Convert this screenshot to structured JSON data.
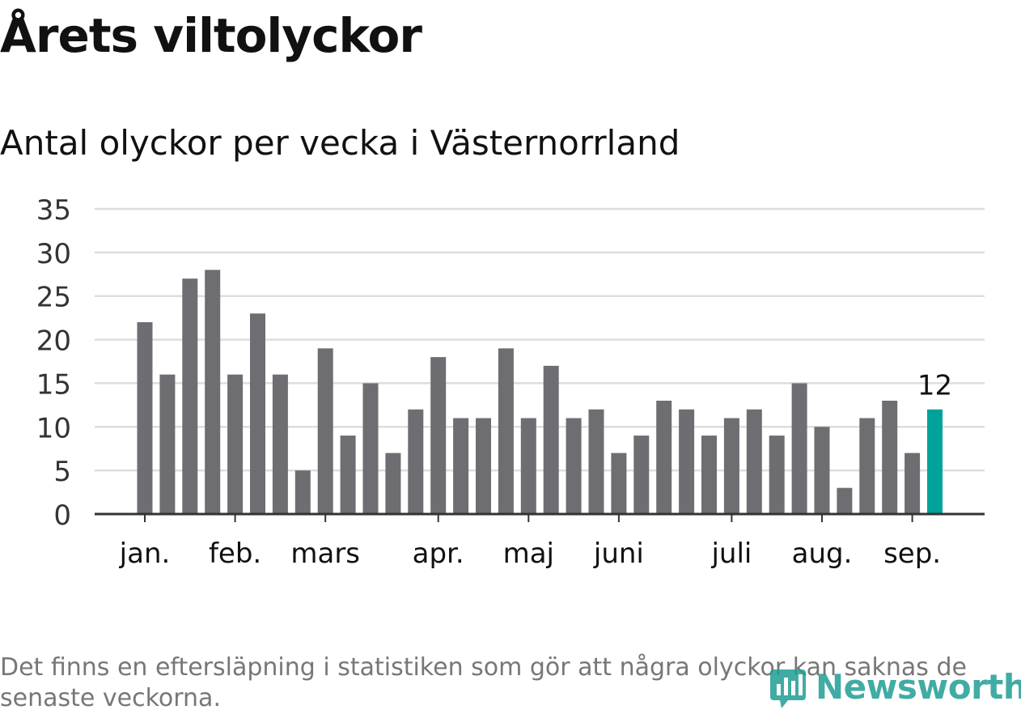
{
  "header": {
    "title": "Årets viltolyckor",
    "subtitle": "Antal olyckor per vecka i Västernorrland"
  },
  "footnote": "Det finns en eftersläpning i statistiken som gör att några olyckor kan saknas de senaste veckorna.",
  "logo": {
    "text": "Newsworthy",
    "icon": "newsworthy-logo-icon",
    "color": "#1f9e94"
  },
  "colors": {
    "bar": "#6e6d72",
    "highlight": "#00a39a",
    "grid": "#dddddd",
    "axis": "#333333"
  },
  "chart_data": {
    "type": "bar",
    "title": "Antal olyckor per vecka i Västernorrland",
    "xlabel": "",
    "ylabel": "",
    "ylim": [
      0,
      35
    ],
    "yticks": [
      0,
      5,
      10,
      15,
      20,
      25,
      30,
      35
    ],
    "grid": true,
    "values": [
      22,
      16,
      27,
      28,
      16,
      23,
      16,
      5,
      19,
      9,
      15,
      7,
      12,
      18,
      11,
      11,
      19,
      11,
      17,
      11,
      12,
      7,
      9,
      13,
      12,
      9,
      11,
      12,
      9,
      15,
      10,
      3,
      11,
      13,
      7,
      12
    ],
    "month_labels": [
      {
        "label": "jan.",
        "week_index": 0
      },
      {
        "label": "feb.",
        "week_index": 4
      },
      {
        "label": "mars",
        "week_index": 8
      },
      {
        "label": "apr.",
        "week_index": 13
      },
      {
        "label": "maj",
        "week_index": 17
      },
      {
        "label": "juni",
        "week_index": 21
      },
      {
        "label": "juli",
        "week_index": 26
      },
      {
        "label": "aug.",
        "week_index": 30
      },
      {
        "label": "sep.",
        "week_index": 34
      }
    ],
    "highlight_index": 35,
    "highlight_label": "12"
  }
}
